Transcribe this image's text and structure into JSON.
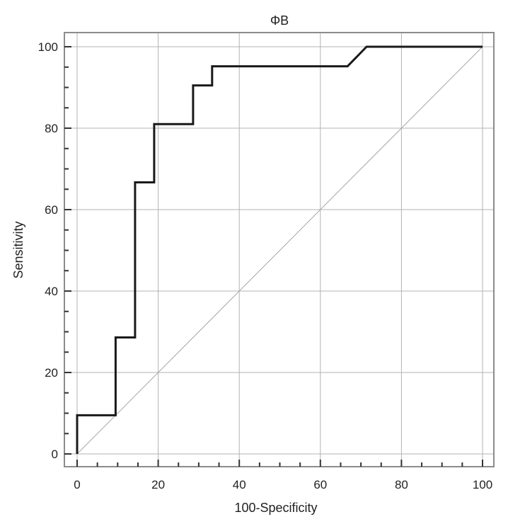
{
  "chart_data": {
    "type": "line",
    "title": "ΦB",
    "xlabel": "100-Specificity",
    "ylabel": "Sensitivity",
    "xlim": [
      0,
      100
    ],
    "ylim": [
      0,
      100
    ],
    "x_ticks": [
      "0",
      "20",
      "40",
      "60",
      "80",
      "100"
    ],
    "y_ticks": [
      "0",
      "20",
      "40",
      "60",
      "80",
      "100"
    ],
    "grid": true,
    "series": [
      {
        "kind": "step",
        "color": "#1a1a1a",
        "x": [
          0,
          0,
          9.5,
          9.5,
          14.3,
          14.3,
          19,
          19,
          28.6,
          28.6,
          33.3,
          33.3,
          66.7,
          71.4,
          100
        ],
        "y": [
          0,
          9.5,
          9.5,
          28.6,
          28.6,
          66.7,
          66.7,
          81,
          81,
          90.5,
          90.5,
          95.2,
          95.2,
          100,
          100
        ]
      },
      {
        "kind": "reference",
        "color": "#a6a6a6",
        "x": [
          0,
          100
        ],
        "y": [
          0,
          100
        ]
      }
    ]
  }
}
